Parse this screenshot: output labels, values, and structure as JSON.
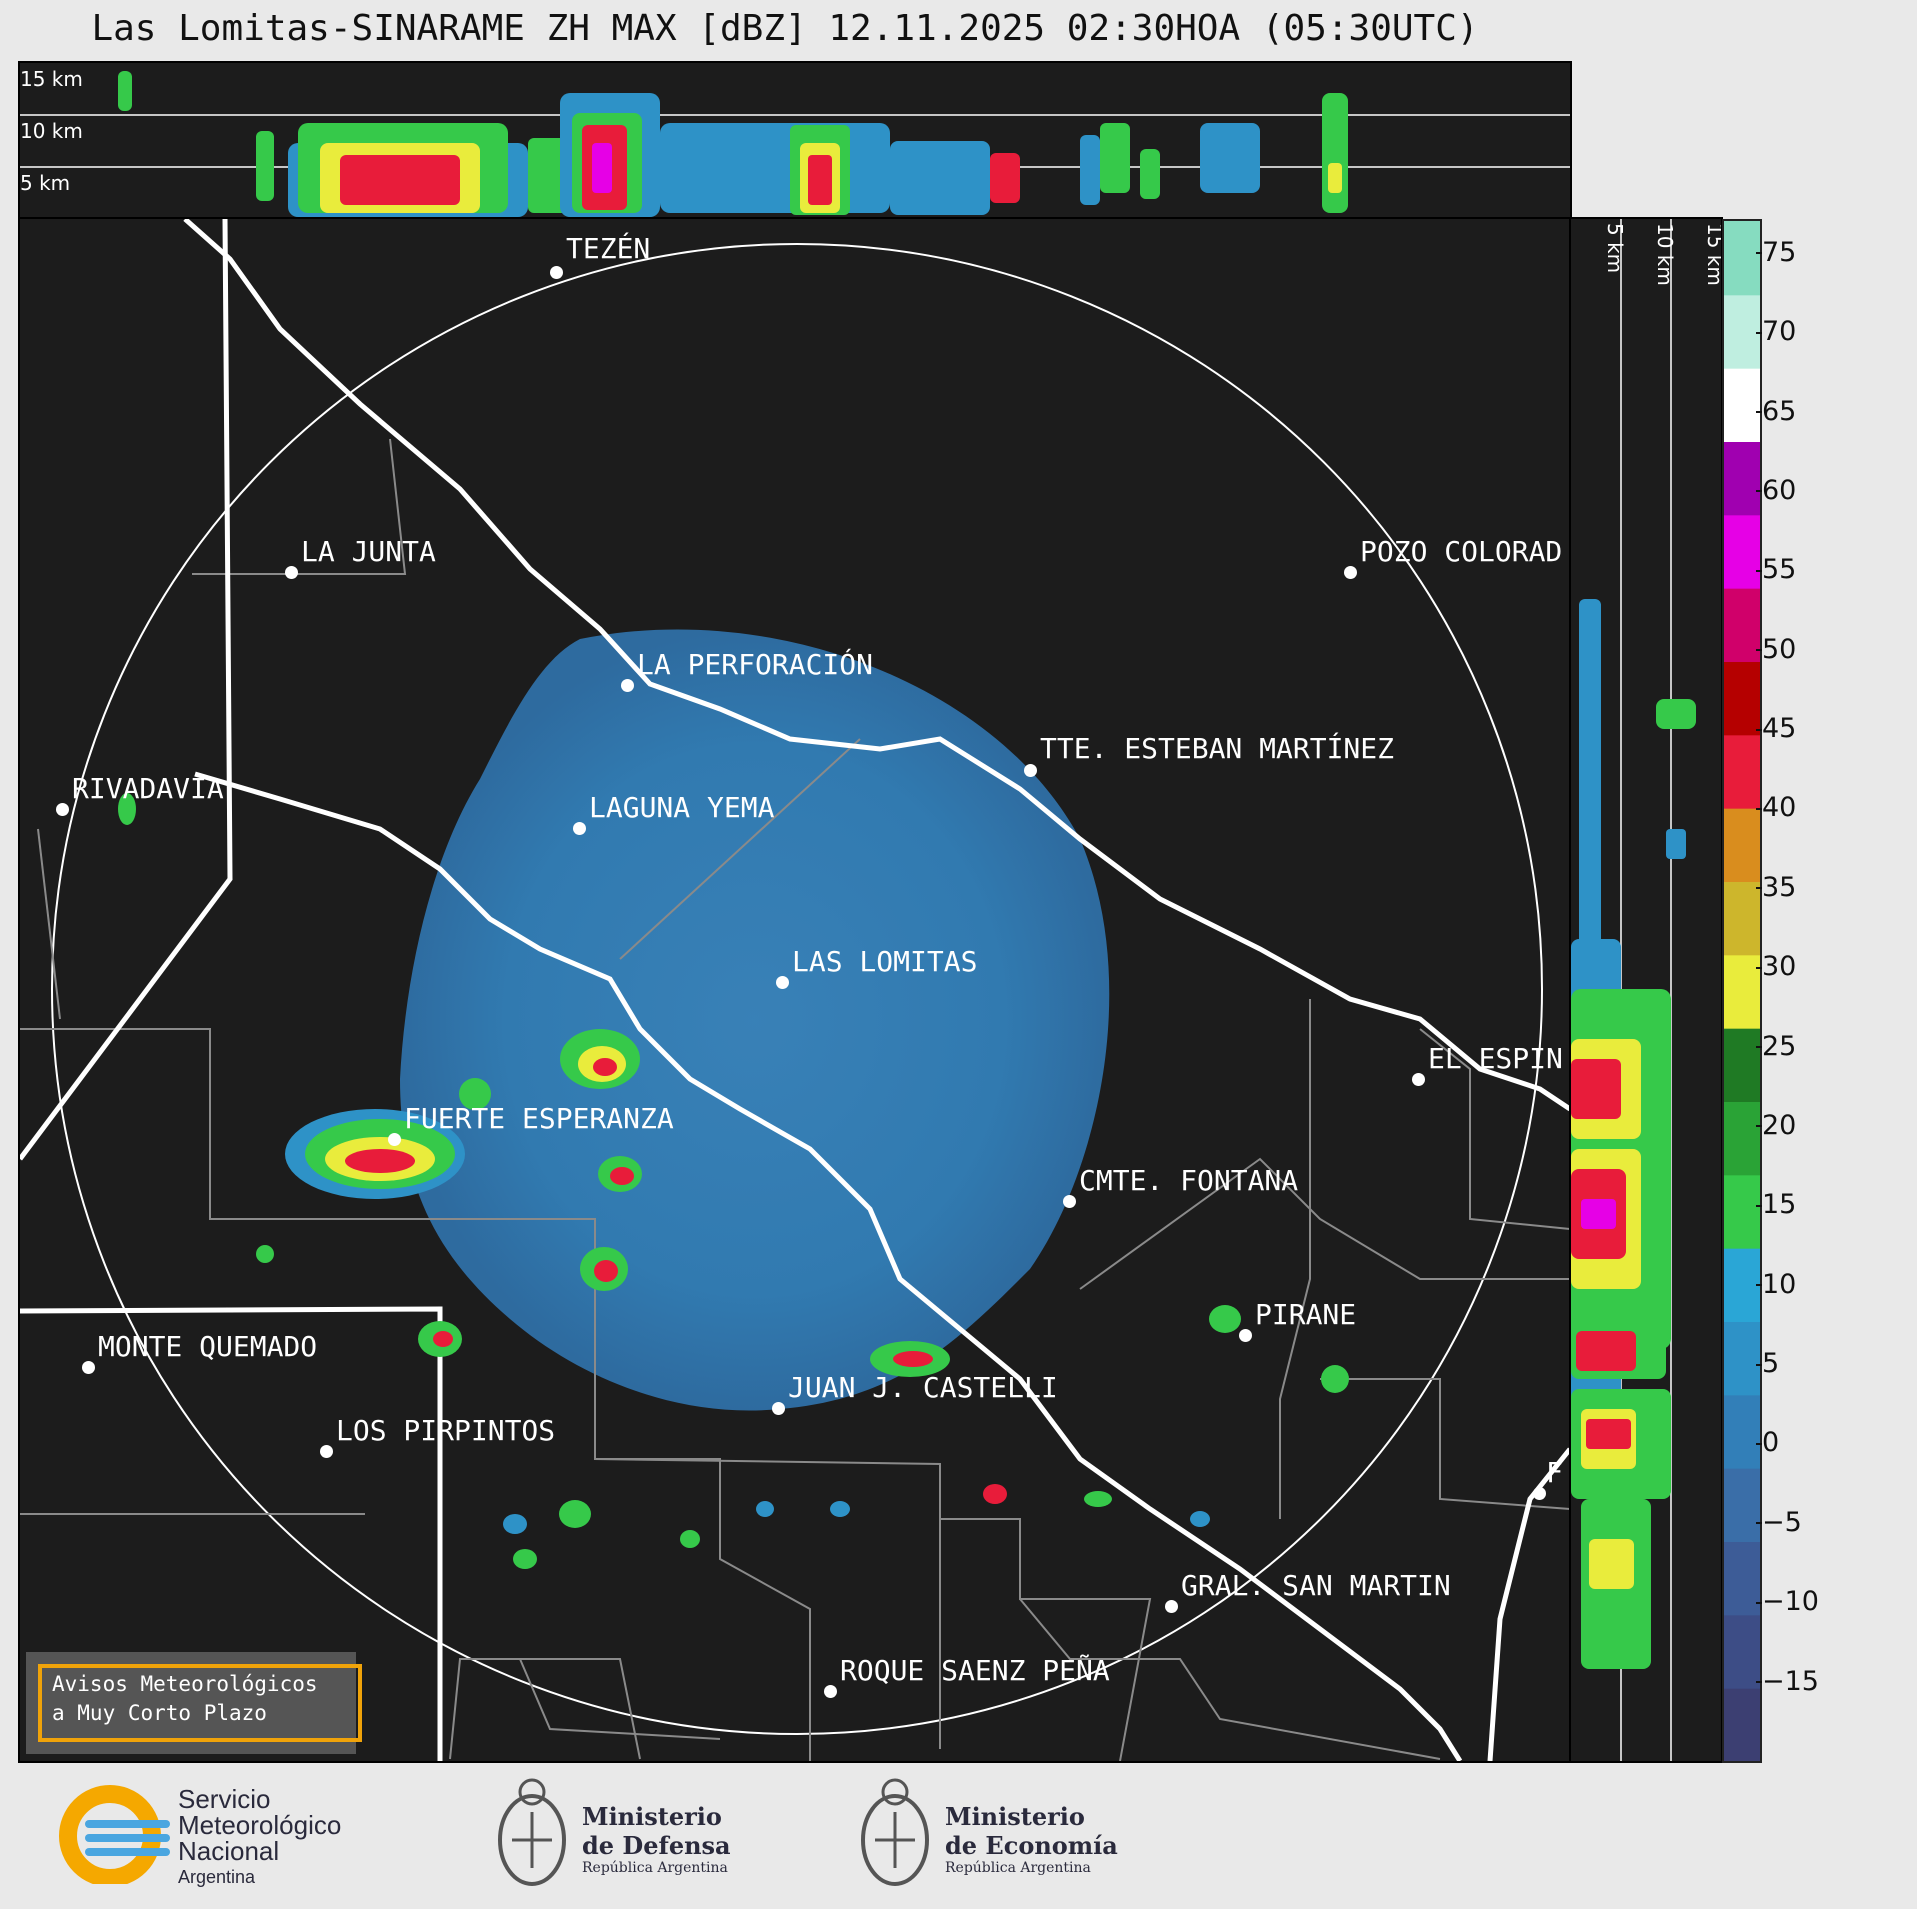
{
  "title": "Las Lomitas-SINARAME ZH MAX [dBZ] 12.11.2025 02:30HOA (05:30UTC)",
  "height_labels": [
    "15 km",
    "10 km",
    "5 km"
  ],
  "cities": [
    {
      "name": "TEZÉN"
    },
    {
      "name": "LA JUNTA"
    },
    {
      "name": "POZO COLORAD"
    },
    {
      "name": "LA PERFORACIÓN"
    },
    {
      "name": "TTE. ESTEBAN MARTÍNEZ"
    },
    {
      "name": "RIVADAVIA"
    },
    {
      "name": "LAGUNA YEMA"
    },
    {
      "name": "LAS LOMITAS"
    },
    {
      "name": "EL ESPIN"
    },
    {
      "name": "FUERTE ESPERANZA"
    },
    {
      "name": "CMTE. FONTANA"
    },
    {
      "name": "PIRANE"
    },
    {
      "name": "MONTE QUEMADO"
    },
    {
      "name": "JUAN J. CASTELLI"
    },
    {
      "name": "LOS PIRPINTOS"
    },
    {
      "name": "F"
    },
    {
      "name": "GRAL. SAN MARTIN"
    },
    {
      "name": "ROQUE SAENZ PEÑA"
    }
  ],
  "colorbar": {
    "unit": "dBZ",
    "min": -20,
    "max": 77,
    "ticks": [
      "75",
      "70",
      "65",
      "60",
      "55",
      "50",
      "45",
      "40",
      "35",
      "30",
      "25",
      "20",
      "15",
      "10",
      "5",
      "0",
      "−5",
      "−10",
      "−15"
    ],
    "tick_values": [
      75,
      70,
      65,
      60,
      55,
      50,
      45,
      40,
      35,
      30,
      25,
      20,
      15,
      10,
      5,
      0,
      -5,
      -10,
      -15
    ],
    "colors": [
      "#3c3f72",
      "#3d4d86",
      "#3d5c97",
      "#3a6ea8",
      "#327fb8",
      "#2e92c7",
      "#2aa6d6",
      "#36c94a",
      "#2aa336",
      "#1f7a24",
      "#e9ec3c",
      "#cdb62c",
      "#d98d1e",
      "#e81c3a",
      "#b50000",
      "#d0006a",
      "#e600e6",
      "#a000b0",
      "#ffffff",
      "#bfeee0",
      "#86dcc0"
    ]
  },
  "warning_box": {
    "line1": "Avisos Meteorológicos",
    "line2": "a Muy Corto Plazo"
  },
  "logos": {
    "smn_line1": "Servicio",
    "smn_line2": "Meteorológico",
    "smn_line3": "Nacional",
    "smn_line4": "Argentina",
    "defensa_line1": "Ministerio",
    "defensa_line2": "de Defensa",
    "defensa_line3": "República Argentina",
    "economia_line1": "Ministerio",
    "economia_line2": "de Economía",
    "economia_line3": "República Argentina"
  }
}
